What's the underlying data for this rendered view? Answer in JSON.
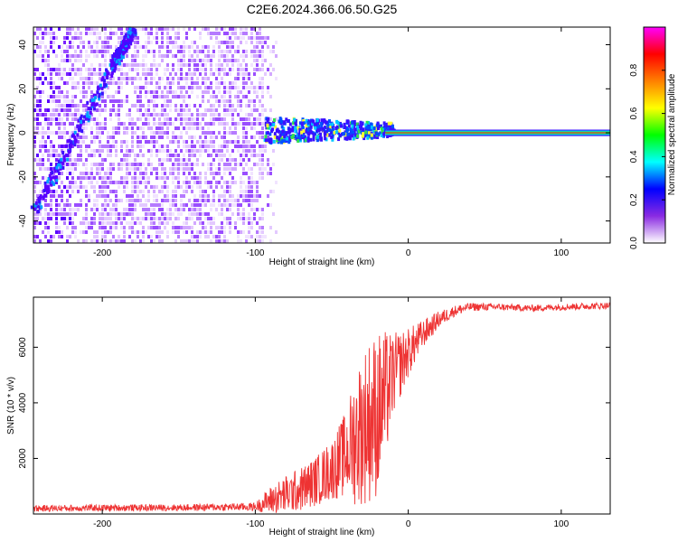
{
  "title": "C2E6.2024.366.06.50.G25",
  "chart_data": [
    {
      "type": "heatmap",
      "xlabel": "Height of straight line (km)",
      "ylabel": "Frequency (Hz)",
      "xlim": [
        -245,
        132
      ],
      "ylim": [
        -50,
        48
      ],
      "xticks": [
        -200,
        -100,
        0,
        100
      ],
      "xtick_labels": [
        "-200",
        "-100",
        "0",
        "100"
      ],
      "yticks": [
        -40,
        -20,
        0,
        20,
        40
      ],
      "ytick_labels": [
        "-40",
        "-20",
        "0",
        "20",
        "40"
      ],
      "description_features": {
        "noise_region_x": [
          -245,
          -95
        ],
        "doppler_streak": [
          [
            -245,
            -35
          ],
          [
            -195,
            30
          ],
          [
            -180,
            48
          ]
        ],
        "carrier_line_y": 0,
        "carrier_start_x": -15,
        "transition_cluster_x": [
          -95,
          -10
        ]
      },
      "colorbar": {
        "label": "Normalized spectral amplitude",
        "range": [
          0.0,
          1.0
        ],
        "ticks": [
          0.0,
          0.2,
          0.4,
          0.6,
          0.8
        ],
        "tick_labels": [
          "0.0",
          "0.2",
          "0.4",
          "0.6",
          "0.8"
        ],
        "colors": [
          "#ffffff",
          "#8a2be2",
          "#0000ff",
          "#00ffff",
          "#00ff00",
          "#ffff00",
          "#ff8000",
          "#ff0000",
          "#ff00ff"
        ]
      }
    },
    {
      "type": "line",
      "xlabel": "Height of straight line (km)",
      "ylabel": "SNR (10 * v/v)",
      "xlim": [
        -245,
        132
      ],
      "ylim": [
        0,
        7800
      ],
      "xticks": [
        -200,
        -100,
        0,
        100
      ],
      "xtick_labels": [
        "-200",
        "-100",
        "0",
        "100"
      ],
      "yticks": [
        2000,
        4000,
        6000
      ],
      "ytick_labels": [
        "2000",
        "4000",
        "6000"
      ],
      "color": "#ee3333",
      "series": [
        {
          "x": [
            -245,
            -200,
            -150,
            -100,
            -90,
            -80,
            -70,
            -60,
            -50,
            -40,
            -35,
            -30,
            -25,
            -20,
            -15,
            -10,
            0,
            10,
            20,
            30,
            40,
            60,
            80,
            100,
            132
          ],
          "y": [
            200,
            220,
            230,
            260,
            500,
            700,
            900,
            1200,
            1600,
            2200,
            2700,
            3100,
            3400,
            3600,
            4200,
            5000,
            5800,
            6500,
            7000,
            7300,
            7450,
            7450,
            7400,
            7450,
            7500
          ],
          "noise_amp": [
            120,
            120,
            120,
            150,
            500,
            700,
            800,
            900,
            1100,
            1600,
            2400,
            2800,
            3000,
            3000,
            2400,
            1500,
            900,
            500,
            300,
            200,
            150,
            120,
            120,
            120,
            120
          ]
        }
      ]
    }
  ]
}
